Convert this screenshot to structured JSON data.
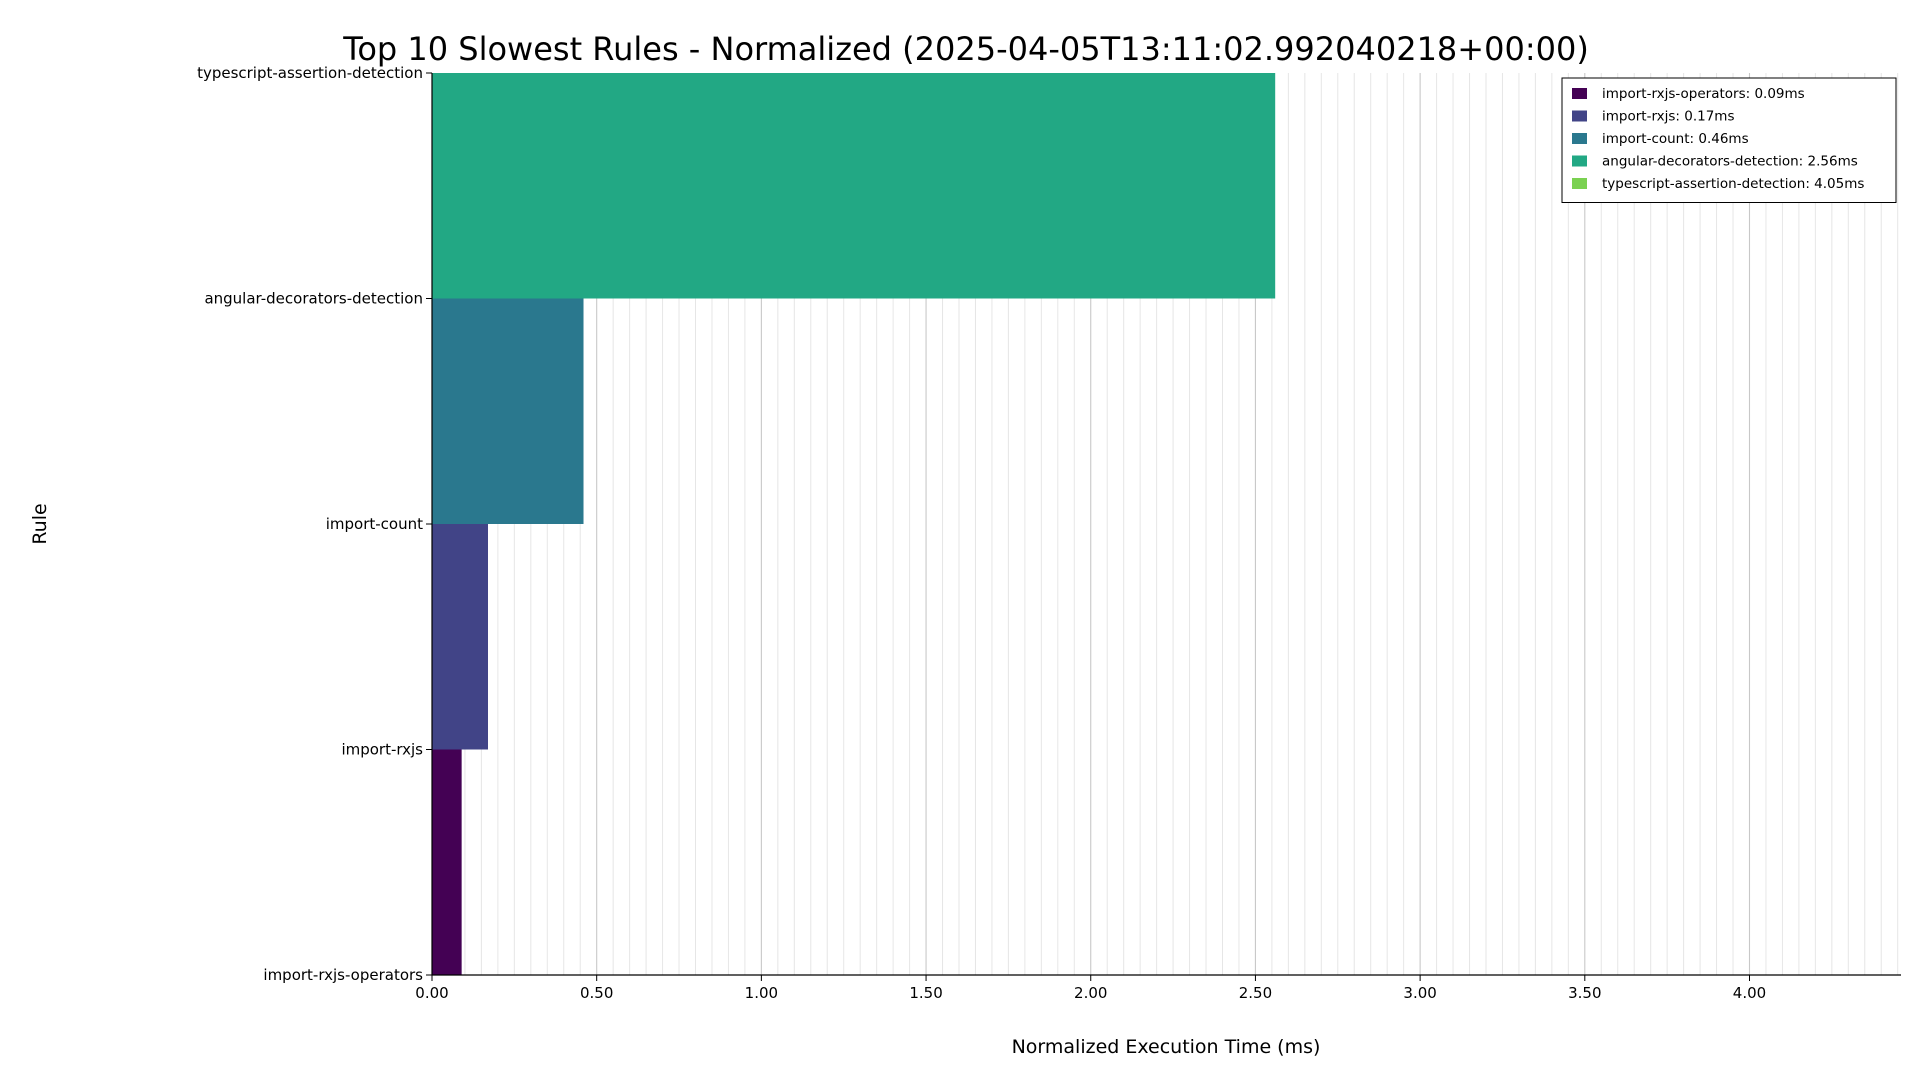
{
  "chart_data": {
    "type": "bar",
    "orientation": "horizontal",
    "title": "Top 10 Slowest Rules - Normalized (2025-04-05T13:11:02.992040218+00:00)",
    "xlabel": "Normalized Execution Time (ms)",
    "ylabel": "Rule",
    "categories": [
      "import-rxjs-operators",
      "import-rxjs",
      "import-count",
      "angular-decorators-detection",
      "typescript-assertion-detection"
    ],
    "values": [
      0.09,
      0.17,
      0.46,
      2.56,
      4.05
    ],
    "colors": [
      "#440154",
      "#414487",
      "#2a788e",
      "#22a884",
      "#7ad151"
    ],
    "xlim": [
      0,
      4.46
    ],
    "xticks": [
      "0.00",
      "0.50",
      "1.00",
      "1.50",
      "2.00",
      "2.50",
      "3.00",
      "3.50",
      "4.00"
    ],
    "grid": "x major and minor",
    "legend_position": "top-right",
    "legend": [
      "import-rxjs-operators: 0.09ms",
      "import-rxjs: 0.17ms",
      "import-count: 0.46ms",
      "angular-decorators-detection: 2.56ms",
      "typescript-assertion-detection: 4.05ms"
    ]
  }
}
